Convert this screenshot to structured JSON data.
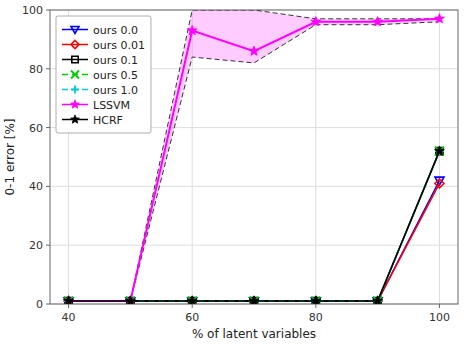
{
  "chart_data": {
    "type": "line",
    "x": [
      40,
      50,
      60,
      70,
      80,
      90,
      100
    ],
    "xlabel": "% of latent variables",
    "ylabel": "0-1 error [%]",
    "xlim": [
      37,
      103
    ],
    "ylim": [
      0,
      100
    ],
    "xticks": [
      40,
      60,
      80,
      100
    ],
    "yticks": [
      0,
      20,
      40,
      60,
      80,
      100
    ],
    "grid": true,
    "legend": "upper left",
    "series": [
      {
        "name": "ours 0.0",
        "color": "#0000ff",
        "marker": "triangle-down",
        "line_style": "solid",
        "values": [
          1,
          1,
          1,
          1,
          1,
          1,
          42
        ]
      },
      {
        "name": "ours 0.01",
        "color": "#ff0000",
        "marker": "diamond",
        "line_style": "solid",
        "values": [
          1,
          1,
          1,
          1,
          1,
          1,
          41
        ]
      },
      {
        "name": "ours 0.1",
        "color": "#000000",
        "marker": "square",
        "line_style": "solid",
        "values": [
          1,
          1,
          1,
          1,
          1,
          1,
          52
        ]
      },
      {
        "name": "ours 0.5",
        "color": "#00cc00",
        "marker": "x",
        "line_style": "dashed",
        "values": [
          1,
          1,
          1,
          1,
          1,
          1,
          52
        ]
      },
      {
        "name": "ours 1.0",
        "color": "#00cccc",
        "marker": "plus",
        "line_style": "dashed",
        "values": [
          1,
          1,
          1,
          1,
          1,
          1,
          52
        ]
      },
      {
        "name": "LSSVM",
        "color": "#ff00ff",
        "marker": "star",
        "line_style": "solid",
        "values": [
          1,
          1,
          93,
          86,
          96,
          96,
          97
        ],
        "upper": [
          1,
          1,
          100,
          100,
          97,
          97,
          97
        ],
        "lower": [
          1,
          1,
          84,
          82,
          95,
          95,
          96
        ]
      },
      {
        "name": "HCRF",
        "color": "#000000",
        "marker": "star",
        "line_style": "solid",
        "values": [
          1,
          1,
          1,
          1,
          1,
          1,
          52
        ]
      }
    ]
  }
}
